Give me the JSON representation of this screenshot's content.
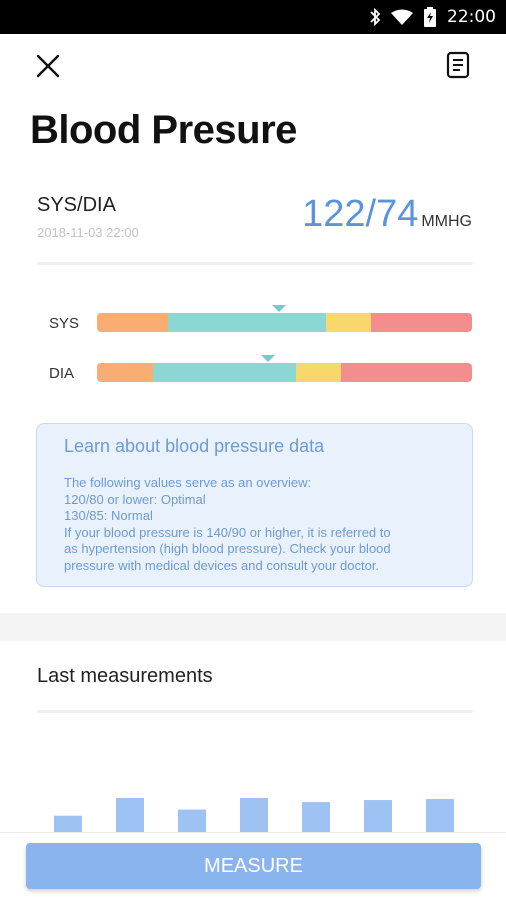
{
  "status_bar": {
    "time": "22:00",
    "icons": [
      "bluetooth-icon",
      "wifi-icon",
      "battery-icon"
    ]
  },
  "app_bar": {
    "close_icon": "close-icon",
    "report_icon": "report-icon"
  },
  "title": "Blood Presure",
  "reading": {
    "label": "SYS/DIA",
    "timestamp": "2018-11-03 22:00",
    "value": "122/74",
    "unit": "MMHG",
    "color": "#5b94de"
  },
  "ranges": [
    {
      "label": "SYS",
      "segments": [
        {
          "fraction": 0.19,
          "color": "#f9ad73"
        },
        {
          "fraction": 0.42,
          "color": "#8bd7d3"
        },
        {
          "fraction": 0.12,
          "color": "#fad76b"
        },
        {
          "fraction": 0.27,
          "color": "#f48e8e"
        }
      ],
      "marker_position": 0.485
    },
    {
      "label": "DIA",
      "segments": [
        {
          "fraction": 0.15,
          "color": "#f9ad73"
        },
        {
          "fraction": 0.38,
          "color": "#8bd7d3"
        },
        {
          "fraction": 0.12,
          "color": "#fad76b"
        },
        {
          "fraction": 0.35,
          "color": "#f48e8e"
        }
      ],
      "marker_position": 0.455
    }
  ],
  "info": {
    "title": "Learn about blood pressure data",
    "lines": [
      "The following values serve as an overview:",
      "120/80 or lower: Optimal",
      "130/85: Normal",
      "If your blood pressure is 140/90 or higher, it is referred to",
      "as hypertension (high blood pressure). Check your blood",
      "pressure with medical devices and consult your doctor."
    ]
  },
  "history": {
    "title": "Last measurements",
    "bar_color": "#9ec2f3",
    "bar_levels": [
      0.48,
      1.0,
      0.66,
      1.0,
      0.88,
      0.94,
      0.97
    ]
  },
  "measure_button": "MEASURE"
}
